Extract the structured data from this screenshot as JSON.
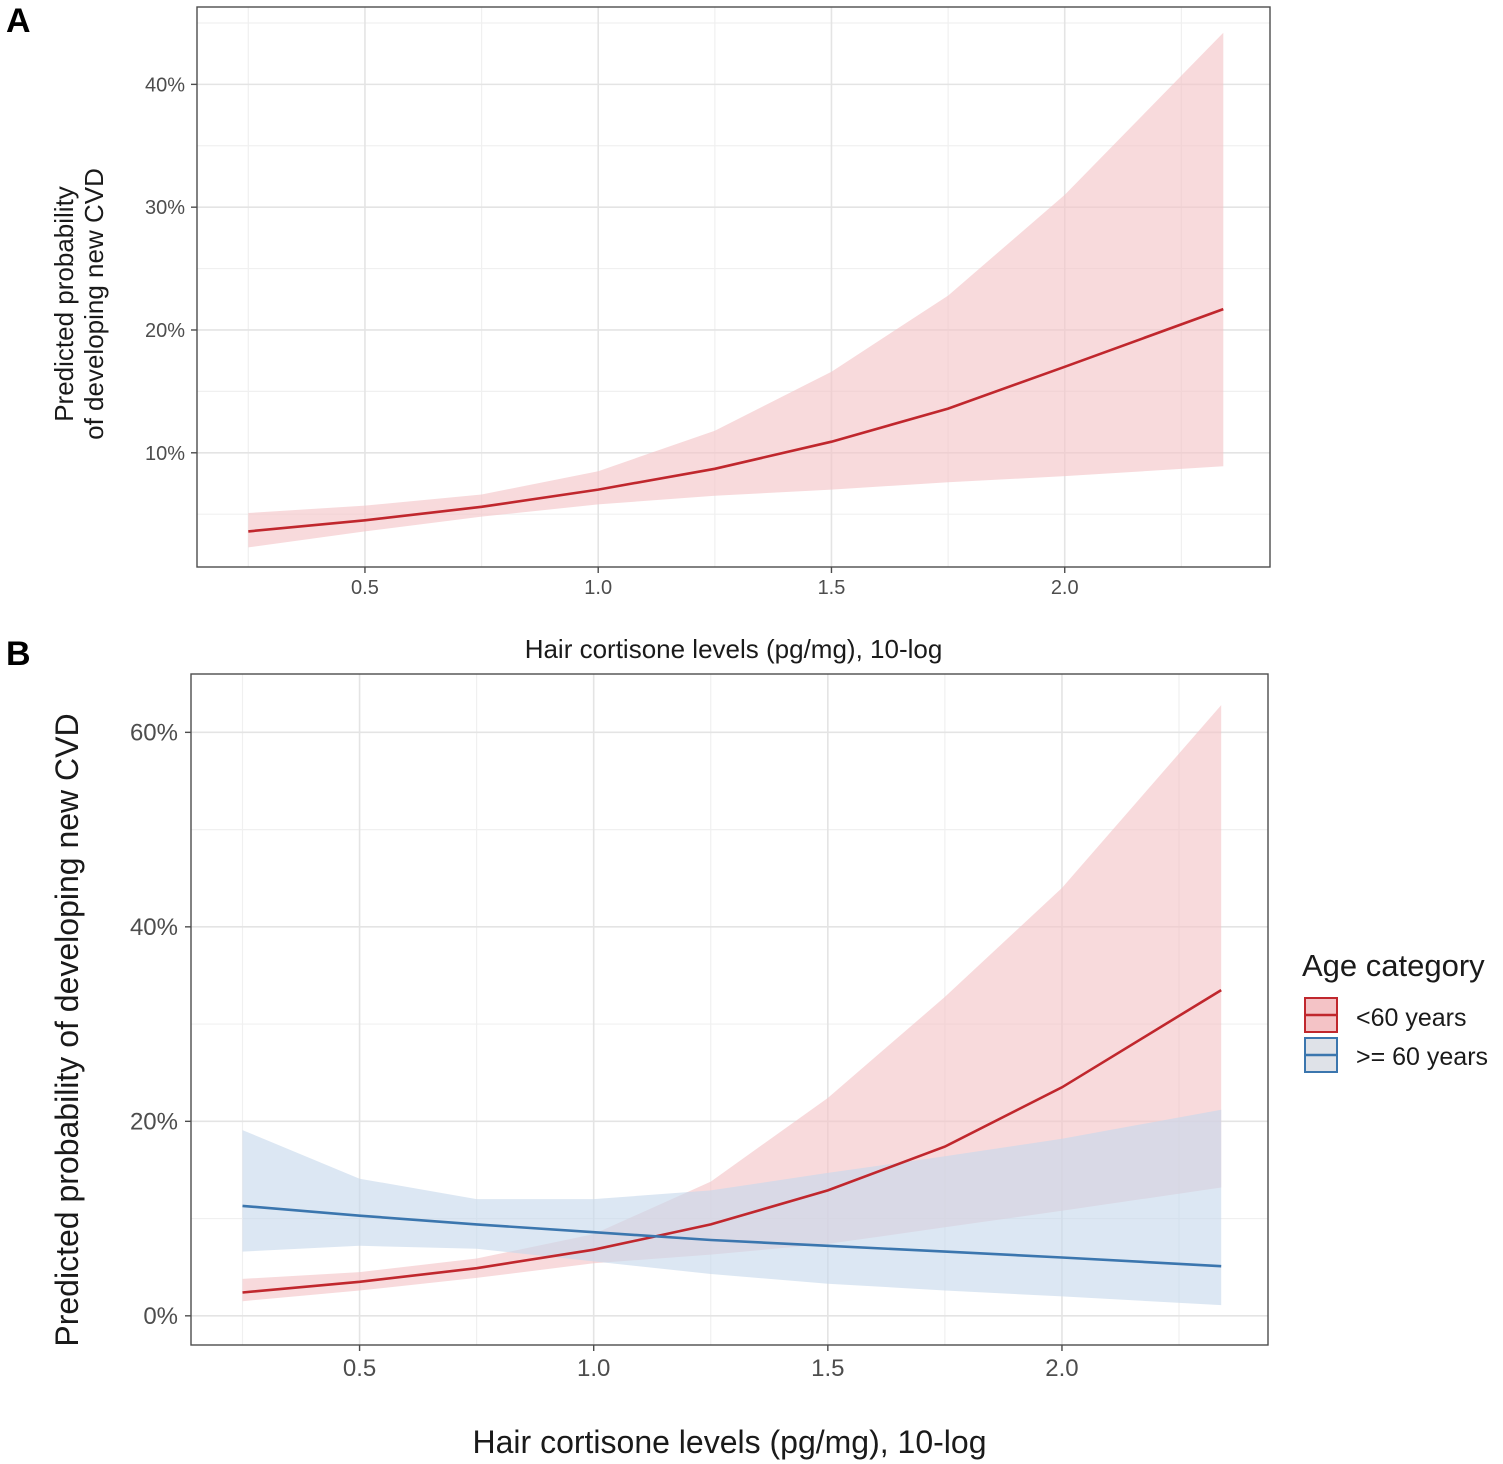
{
  "chart_data": [
    {
      "panel": "A",
      "type": "line",
      "xlabel": "Hair cortisone levels (pg/mg), 10-log",
      "ylabel_lines": [
        "Predicted probability",
        "of developing new CVD"
      ],
      "xlim": [
        0.14,
        2.44
      ],
      "ylim": [
        0.7,
        46.3
      ],
      "x_ticks": [
        0.5,
        1.0,
        1.5,
        2.0
      ],
      "x_tick_labels": [
        "0.5",
        "1.0",
        "1.5",
        "2.0"
      ],
      "y_ticks": [
        10,
        20,
        30,
        40
      ],
      "y_tick_labels": [
        "10%",
        "20%",
        "30%",
        "40%"
      ],
      "series": [
        {
          "name": "<60 years",
          "color": "#c0272d",
          "fill": "#f4c3c6",
          "x": [
            0.25,
            0.5,
            0.75,
            1.0,
            1.25,
            1.5,
            1.75,
            2.0,
            2.34
          ],
          "y": [
            3.6,
            4.5,
            5.6,
            7.0,
            8.7,
            10.9,
            13.6,
            17.0,
            21.7
          ],
          "lower": [
            2.3,
            3.6,
            4.8,
            5.8,
            6.5,
            7.0,
            7.6,
            8.1,
            8.9
          ],
          "upper": [
            5.1,
            5.7,
            6.6,
            8.5,
            11.8,
            16.6,
            22.8,
            31.0,
            44.2
          ]
        }
      ]
    },
    {
      "panel": "B",
      "type": "line",
      "xlabel": "Hair cortisone levels (pg/mg), 10-log",
      "ylabel": "Predicted probability of developing new CVD",
      "xlim": [
        0.14,
        2.44
      ],
      "ylim": [
        -3.0,
        66.0
      ],
      "x_ticks": [
        0.5,
        1.0,
        1.5,
        2.0
      ],
      "x_tick_labels": [
        "0.5",
        "1.0",
        "1.5",
        "2.0"
      ],
      "y_ticks": [
        0,
        20,
        40,
        60
      ],
      "y_tick_labels": [
        "0%",
        "20%",
        "40%",
        "60%"
      ],
      "legend": {
        "title": "Age category",
        "position": "right"
      },
      "series": [
        {
          "name": "<60 years",
          "color": "#c0272d",
          "fill": "#f4c3c6",
          "x": [
            0.25,
            0.5,
            0.75,
            1.0,
            1.25,
            1.5,
            1.75,
            2.0,
            2.34
          ],
          "y": [
            2.4,
            3.5,
            4.9,
            6.8,
            9.4,
            12.9,
            17.4,
            23.5,
            33.5
          ],
          "lower": [
            1.5,
            2.6,
            3.9,
            5.4,
            6.3,
            7.4,
            9.1,
            10.8,
            13.2
          ],
          "upper": [
            3.8,
            4.5,
            5.9,
            8.4,
            13.8,
            22.4,
            32.8,
            44.0,
            62.8
          ]
        },
        {
          "name": ">= 60 years",
          "color": "#3b76ae",
          "fill": "#c6d9ec",
          "x": [
            0.25,
            0.5,
            0.75,
            1.0,
            1.25,
            1.5,
            1.75,
            2.0,
            2.34
          ],
          "y": [
            11.3,
            10.3,
            9.4,
            8.6,
            7.8,
            7.2,
            6.6,
            6.0,
            5.1
          ],
          "lower": [
            6.6,
            7.2,
            6.9,
            5.6,
            4.3,
            3.3,
            2.6,
            2.0,
            1.1
          ],
          "upper": [
            19.1,
            14.1,
            12.0,
            12.0,
            12.9,
            14.7,
            16.4,
            18.2,
            21.2
          ]
        }
      ]
    }
  ]
}
